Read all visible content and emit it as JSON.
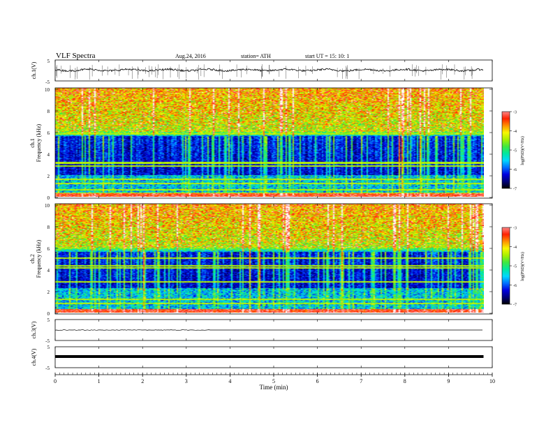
{
  "header": {
    "title": "VLF  Spectra",
    "date": "Aug.24, 2016",
    "station": "station= ATH",
    "start": "start  UT =    15: 10: 1"
  },
  "chart_data": [
    {
      "type": "line",
      "name": "ch1-waveform",
      "ylabel": "ch.1(V)",
      "ylim": [
        -5,
        5
      ],
      "yticks": [
        "5",
        "-5"
      ],
      "xlim": [
        0,
        10
      ],
      "baseline": 0.2,
      "spike_min": -4.5,
      "spike_max": 3.0
    },
    {
      "type": "heatmap",
      "name": "ch1-spectrogram",
      "ylabel_line1": "ch.1",
      "ylabel_line2": "Frequency  (kHz)",
      "ylim": [
        0,
        10
      ],
      "yticks": [
        "0",
        "2",
        "4",
        "6",
        "8",
        "10"
      ],
      "xlim": [
        0,
        9.8
      ],
      "colorbar_label": "log(PSD)(V²/Hz)",
      "colorbar_ticks": [
        "-3",
        "-4",
        "-5",
        "-6",
        "-7"
      ],
      "dark_band_khz": [
        2.0,
        5.6
      ],
      "emission_band_khz": [
        6.0,
        10.0
      ],
      "lines_khz": [
        0.3,
        0.6,
        1.2,
        1.6,
        2.8,
        3.1,
        5.8
      ]
    },
    {
      "type": "heatmap",
      "name": "ch2-spectrogram",
      "ylabel_line1": "ch.2",
      "ylabel_line2": "Frequency  (kHz)",
      "ylim": [
        0,
        10
      ],
      "yticks": [
        "0",
        "2",
        "4",
        "6",
        "8",
        "10"
      ],
      "xlim": [
        0,
        9.8
      ],
      "colorbar_label": "log(PSD)(V²/Hz)",
      "colorbar_ticks": [
        "-3",
        "-4",
        "-5",
        "-6",
        "-7"
      ],
      "dark_band_khz": [
        2.2,
        5.6
      ],
      "emission_band_khz": [
        6.0,
        10.0
      ],
      "lines_khz": [
        0.8,
        1.2,
        2.8,
        4.1,
        4.3,
        5.0
      ]
    },
    {
      "type": "line",
      "name": "ch3-waveform",
      "ylabel": "ch.3(V)",
      "ylim": [
        -5,
        5
      ],
      "yticks": [
        "5",
        "-5"
      ],
      "xlim": [
        0,
        9.8
      ],
      "baseline": 0
    },
    {
      "type": "line",
      "name": "ch4-waveform",
      "ylabel": "ch.4(V)",
      "ylim": [
        -5,
        5
      ],
      "yticks": [
        "5",
        "-5"
      ],
      "xlim": [
        0,
        9.8
      ],
      "baseline": 0
    }
  ],
  "xaxis": {
    "label": "Time  (min)",
    "ticks": [
      "0",
      "1",
      "2",
      "3",
      "4",
      "5",
      "6",
      "7",
      "8",
      "9",
      "10"
    ],
    "range": [
      0,
      10
    ]
  },
  "colors": {
    "trace": "#000000",
    "colormap": [
      "#000000",
      "#00007a",
      "#0000e0",
      "#0070ff",
      "#00d8ff",
      "#00e8a0",
      "#40e840",
      "#a8f000",
      "#f8f800",
      "#ff9000",
      "#ff2000",
      "#ff8888",
      "#ffffff"
    ]
  }
}
